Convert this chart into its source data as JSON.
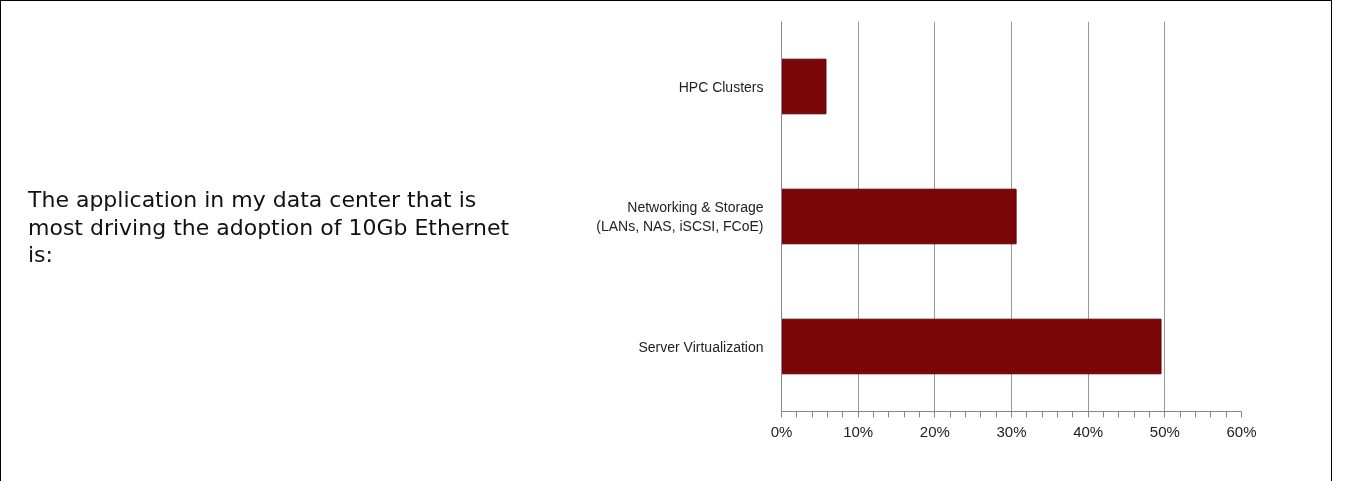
{
  "chart_data": {
    "type": "bar",
    "orientation": "horizontal",
    "title": "The application in my data center that is most driving the adoption of 10Gb Ethernet is:",
    "categories": [
      "HPC Clusters",
      "Networking & Storage\n(LANs, NAS, iSCSI, FCoE)",
      "Server Virtualization"
    ],
    "values": [
      5.8,
      30.6,
      49.5
    ],
    "color": "#7b0608",
    "xlim": [
      0,
      60
    ],
    "xticks": [
      {
        "value": 0,
        "label": "0%"
      },
      {
        "value": 2,
        "label": null
      },
      {
        "value": 4,
        "label": null
      },
      {
        "value": 6,
        "label": null
      },
      {
        "value": 8,
        "label": null
      },
      {
        "value": 10,
        "label": "10%"
      },
      {
        "value": 12,
        "label": null
      },
      {
        "value": 14,
        "label": null
      },
      {
        "value": 16,
        "label": null
      },
      {
        "value": 18,
        "label": null
      },
      {
        "value": 20,
        "label": "20%"
      },
      {
        "value": 22,
        "label": null
      },
      {
        "value": 24,
        "label": null
      },
      {
        "value": 26,
        "label": null
      },
      {
        "value": 28,
        "label": null
      },
      {
        "value": 30,
        "label": "30%"
      },
      {
        "value": 32,
        "label": null
      },
      {
        "value": 34,
        "label": null
      },
      {
        "value": 36,
        "label": null
      },
      {
        "value": 38,
        "label": null
      },
      {
        "value": 40,
        "label": "40%"
      },
      {
        "value": 42,
        "label": null
      },
      {
        "value": 44,
        "label": null
      },
      {
        "value": 46,
        "label": null
      },
      {
        "value": 48,
        "label": null
      },
      {
        "value": 50,
        "label": "50%"
      },
      {
        "value": 52,
        "label": null
      },
      {
        "value": 54,
        "label": null
      },
      {
        "value": 56,
        "label": null
      },
      {
        "value": 58,
        "label": null
      },
      {
        "value": 60,
        "label": "60%"
      }
    ],
    "grid": "x"
  }
}
